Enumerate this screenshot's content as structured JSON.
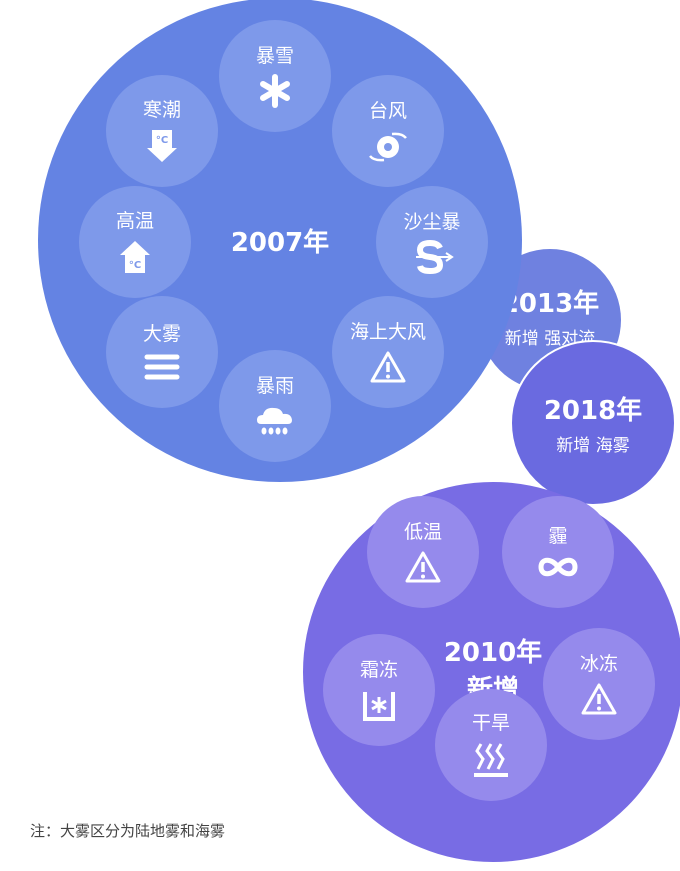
{
  "group_2007": {
    "title": "2007年",
    "color": "#6483e3",
    "items": [
      {
        "label": "暴雪",
        "icon": "snowflake-icon"
      },
      {
        "label": "台风",
        "icon": "typhoon-icon"
      },
      {
        "label": "沙尘暴",
        "icon": "sandstorm-icon"
      },
      {
        "label": "海上大风",
        "icon": "warning-icon"
      },
      {
        "label": "暴雨",
        "icon": "rain-cloud-icon"
      },
      {
        "label": "大雾",
        "icon": "fog-icon"
      },
      {
        "label": "高温",
        "icon": "high-temperature-icon"
      },
      {
        "label": "寒潮",
        "icon": "cold-wave-icon"
      }
    ]
  },
  "group_2013": {
    "title": "2013年",
    "subtitle": "新增 强对流",
    "color": "#6f81e0"
  },
  "group_2018": {
    "title": "2018年",
    "subtitle": "新增 海雾",
    "color": "#6a6ae0"
  },
  "group_2010": {
    "title": "2010年",
    "subtitle": "新增",
    "color": "#786ce4",
    "items": [
      {
        "label": "低温",
        "icon": "warning-icon"
      },
      {
        "label": "霾",
        "icon": "infinity-icon"
      },
      {
        "label": "霜冻",
        "icon": "frost-icon"
      },
      {
        "label": "冰冻",
        "icon": "warning-icon"
      },
      {
        "label": "干旱",
        "icon": "heat-waves-icon"
      }
    ]
  },
  "note": "注：大雾区分为陆地雾和海雾"
}
